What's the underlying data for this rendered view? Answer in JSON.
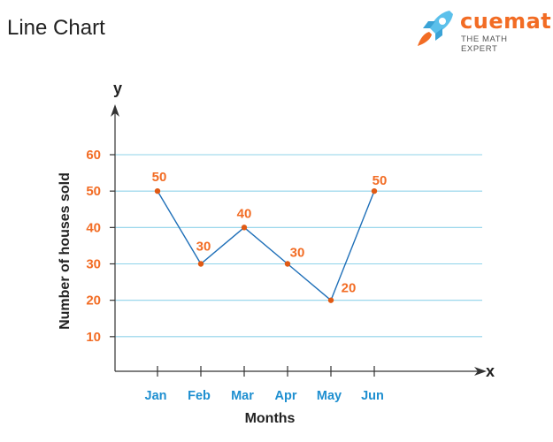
{
  "page_heading": "Line Chart",
  "logo": {
    "wordmark": "cuemath",
    "tagline": "THE MATH EXPERT",
    "colors": {
      "rocket": "#5bc0eb",
      "flame": "#f26c24",
      "wordmark": "#f26c24"
    }
  },
  "colors": {
    "line": "#1e6fb8",
    "marker": "#e05a14",
    "grid": "#8fd3ea",
    "y_ticks": "#f26c24",
    "x_ticks": "#1e8fd0",
    "axis": "#333333"
  },
  "chart_data": {
    "type": "line",
    "title": "",
    "xlabel": "Months",
    "ylabel": "Number of houses sold",
    "x_axis_letter": "x",
    "y_axis_letter": "y",
    "categories": [
      "Jan",
      "Feb",
      "Mar",
      "Apr",
      "May",
      "Jun"
    ],
    "series": [
      {
        "values": [
          50,
          30,
          40,
          30,
          20,
          50
        ]
      }
    ],
    "data_labels": [
      "50",
      "30",
      "40",
      "30",
      "20",
      "50"
    ],
    "y_ticks": [
      10,
      20,
      30,
      40,
      50,
      60
    ],
    "ylim": [
      0,
      60
    ],
    "grid": true,
    "legend": "none"
  }
}
